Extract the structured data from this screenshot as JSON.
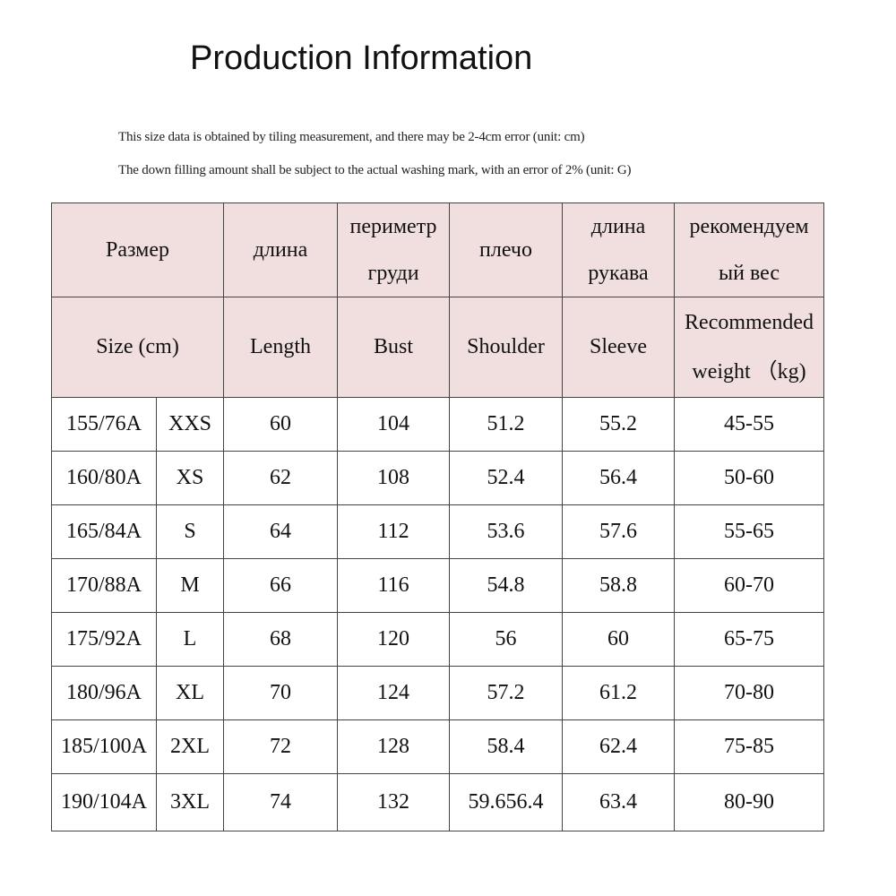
{
  "title": "Production Information",
  "notes": [
    "This size data is obtained by tiling measurement, and there may be 2-4cm error (unit: cm)",
    "The down filling amount shall be subject to the actual washing mark, with an error of 2% (unit: G)"
  ],
  "header_ru": {
    "size": "Размер",
    "length": "длина",
    "bust_line1": "периметр",
    "bust_line2": "груди",
    "shoulder": "плечо",
    "sleeve_line1": "длина",
    "sleeve_line2": "рукава",
    "weight_line1": "рекомендуем",
    "weight_line2": "ый вес"
  },
  "header_en": {
    "size": "Size (cm)",
    "length": "Length",
    "bust": "Bust",
    "shoulder": "Shoulder",
    "sleeve": "Sleeve",
    "weight_line1": "Recommended",
    "weight_line2": "weight （kg)"
  },
  "rows": [
    {
      "code": "155/76A",
      "size": "XXS",
      "length": "60",
      "bust": "104",
      "shoulder": "51.2",
      "sleeve": "55.2",
      "weight": "45-55"
    },
    {
      "code": "160/80A",
      "size": "XS",
      "length": "62",
      "bust": "108",
      "shoulder": "52.4",
      "sleeve": "56.4",
      "weight": "50-60"
    },
    {
      "code": "165/84A",
      "size": "S",
      "length": "64",
      "bust": "112",
      "shoulder": "53.6",
      "sleeve": "57.6",
      "weight": "55-65"
    },
    {
      "code": "170/88A",
      "size": "M",
      "length": "66",
      "bust": "116",
      "shoulder": "54.8",
      "sleeve": "58.8",
      "weight": "60-70"
    },
    {
      "code": "175/92A",
      "size": "L",
      "length": "68",
      "bust": "120",
      "shoulder": "56",
      "sleeve": "60",
      "weight": "65-75"
    },
    {
      "code": "180/96A",
      "size": "XL",
      "length": "70",
      "bust": "124",
      "shoulder": "57.2",
      "sleeve": "61.2",
      "weight": "70-80"
    },
    {
      "code": "185/100A",
      "size": "2XL",
      "length": "72",
      "bust": "128",
      "shoulder": "58.4",
      "sleeve": "62.4",
      "weight": "75-85"
    },
    {
      "code": "190/104A",
      "size": "3XL",
      "length": "74",
      "bust": "132",
      "shoulder": "59.656.4",
      "sleeve": "63.4",
      "weight": "80-90"
    }
  ],
  "colors": {
    "header_bg": "#f1dfdf",
    "border": "#444444"
  }
}
